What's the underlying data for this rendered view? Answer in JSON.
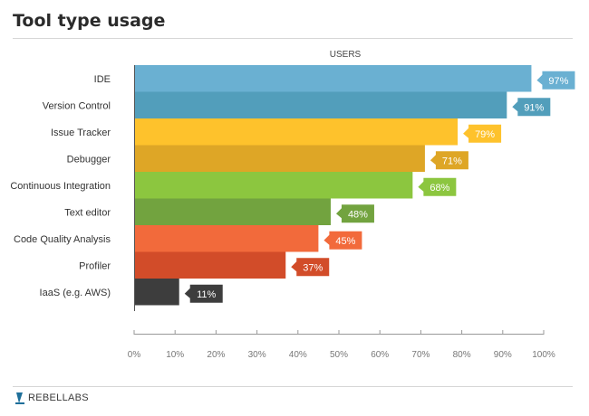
{
  "title": "Tool type usage",
  "brand": "REBELLABS",
  "chart_data": {
    "type": "bar",
    "orientation": "horizontal",
    "axis_title": "USERS",
    "categories": [
      "IDE",
      "Version Control",
      "Issue Tracker",
      "Debugger",
      "Continuous Integration",
      "Text editor",
      "Code Quality Analysis",
      "Profiler",
      "IaaS (e.g. AWS)"
    ],
    "values": [
      97,
      91,
      79,
      71,
      68,
      48,
      45,
      37,
      11
    ],
    "value_labels": [
      "97%",
      "91%",
      "79%",
      "71%",
      "68%",
      "48%",
      "45%",
      "37%",
      "11%"
    ],
    "colors": [
      "#6ab0d2",
      "#529ebb",
      "#fec22c",
      "#dea626",
      "#8cc63f",
      "#72a33f",
      "#f26a3b",
      "#d24c29",
      "#3d3d3d"
    ],
    "xlim": [
      0,
      100
    ],
    "xticks": [
      0,
      10,
      20,
      30,
      40,
      50,
      60,
      70,
      80,
      90,
      100
    ],
    "xtick_labels": [
      "0%",
      "10%",
      "20%",
      "30%",
      "40%",
      "50%",
      "60%",
      "70%",
      "80%",
      "90%",
      "100%"
    ],
    "grid": false,
    "legend": "none"
  }
}
